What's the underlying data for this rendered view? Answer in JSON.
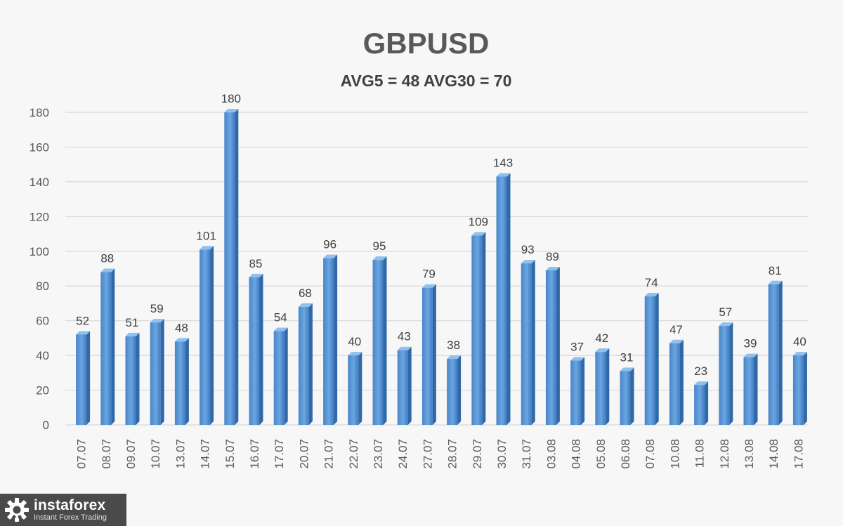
{
  "chart_data": {
    "type": "bar",
    "title": "GBPUSD",
    "subtitle": "AVG5 = 48 AVG30 = 70",
    "categories": [
      "07.07",
      "08.07",
      "09.07",
      "10.07",
      "13.07",
      "14.07",
      "15.07",
      "16.07",
      "17.07",
      "20.07",
      "21.07",
      "22.07",
      "23.07",
      "24.07",
      "27.07",
      "28.07",
      "29.07",
      "30.07",
      "31.07",
      "03.08",
      "04.08",
      "05.08",
      "06.08",
      "07.08",
      "10.08",
      "11.08",
      "12.08",
      "13.08",
      "14.08",
      "17.08"
    ],
    "values": [
      52,
      88,
      51,
      59,
      48,
      101,
      180,
      85,
      54,
      68,
      96,
      40,
      95,
      43,
      79,
      38,
      109,
      143,
      93,
      89,
      37,
      42,
      31,
      74,
      47,
      23,
      57,
      39,
      81,
      40
    ],
    "data_labels": [
      "52",
      "88",
      "51",
      "59",
      "48",
      "101",
      "180",
      "85",
      "54",
      "68",
      "96",
      "40",
      "95",
      "43",
      "79",
      "38",
      "109",
      "143",
      "93",
      "89",
      "37",
      "42",
      "31",
      "74",
      "47",
      "23",
      "57",
      "39",
      "81",
      "40"
    ],
    "ylim": [
      0,
      180
    ],
    "yticks": [
      0,
      20,
      40,
      60,
      80,
      100,
      120,
      140,
      160,
      180
    ],
    "grid": true,
    "bar_color": "#5b9bd5",
    "bar_style": "3d"
  },
  "watermark": {
    "name": "instaforex",
    "tagline": "Instant Forex Trading"
  }
}
